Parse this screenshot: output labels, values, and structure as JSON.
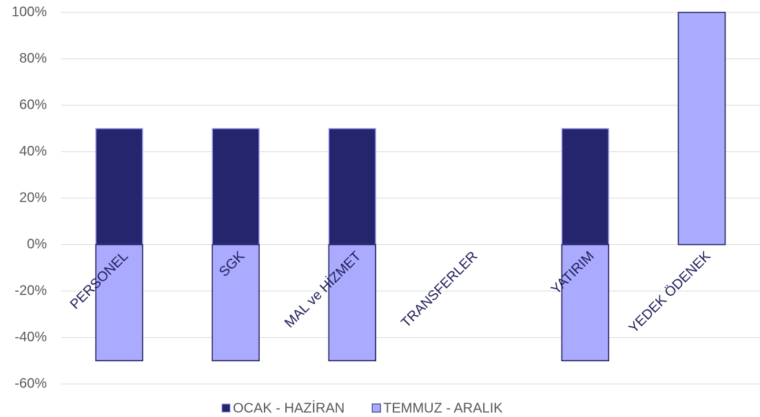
{
  "chart_data": {
    "type": "bar",
    "stacked": true,
    "categories": [
      "PERSONEL",
      "SGK",
      "MAL ve HİZMET",
      "TRANSFERLER",
      "YATIRIM",
      "YEDEK ÖDENEK"
    ],
    "series": [
      {
        "name": "OCAK - HAZİRAN",
        "color": "#25256e",
        "values": [
          50,
          50,
          50,
          0,
          50,
          0
        ]
      },
      {
        "name": "TEMMUZ - ARALIK",
        "color": "#aaaaff",
        "values": [
          -50,
          -50,
          -50,
          0,
          -50,
          100
        ]
      }
    ],
    "ylim": [
      -60,
      100
    ],
    "yticks": [
      {
        "value": -60,
        "label": "-60%"
      },
      {
        "value": -40,
        "label": "-40%"
      },
      {
        "value": -20,
        "label": "-20%"
      },
      {
        "value": 0,
        "label": "0%"
      },
      {
        "value": 20,
        "label": "20%"
      },
      {
        "value": 40,
        "label": "40%"
      },
      {
        "value": 60,
        "label": "60%"
      },
      {
        "value": 80,
        "label": "80%"
      },
      {
        "value": 100,
        "label": "100%"
      }
    ],
    "grid": true,
    "legend": "bottom"
  }
}
